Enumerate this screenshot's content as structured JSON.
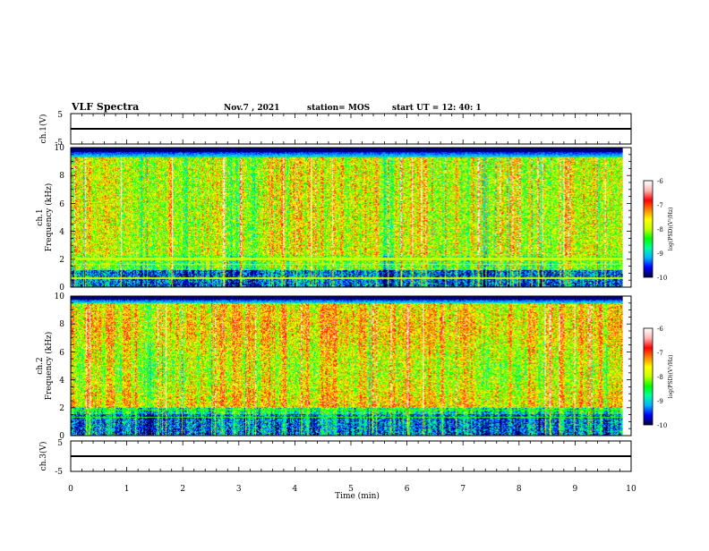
{
  "header": {
    "title": "VLF Spectra",
    "date": "Nov.7 , 2021",
    "station": "station= MOS",
    "start": "start  UT =   12: 40: 1"
  },
  "colors": {
    "background": "#ffffff",
    "axes": "#000000",
    "spectrogram_floor": "#000033",
    "colormap": [
      "#00004a",
      "#0000ff",
      "#00b4ff",
      "#00ffa0",
      "#00ff00",
      "#c8ff00",
      "#ffff00",
      "#ff8000",
      "#ff0000",
      "#ffb4b4",
      "#ffffff"
    ]
  },
  "chart_data": [
    {
      "type": "line",
      "ylabel": "ch.1(V)",
      "ylim": [
        -5,
        5
      ],
      "yticks": [
        "5",
        "-5"
      ],
      "x": [
        0,
        10
      ],
      "values": [
        0,
        0
      ]
    },
    {
      "type": "heatmap",
      "ylabel_top": "ch.1",
      "ylabel": "Frequency (kHz)",
      "ylim": [
        0,
        10
      ],
      "yticks": [
        "0",
        "2",
        "4",
        "6",
        "8",
        "10"
      ],
      "xlim": [
        0,
        10
      ],
      "data_end_min": 9.85,
      "band_max_khz": 9.3,
      "colorbar": {
        "label": "log(PSD)(V²/Hz)",
        "ticks": [
          "-6",
          "-7",
          "-8",
          "-9",
          "-10"
        ],
        "range": [
          -10,
          -6
        ]
      }
    },
    {
      "type": "heatmap",
      "ylabel_top": "ch.2",
      "ylabel": "Frequency (kHz)",
      "ylim": [
        0,
        10
      ],
      "yticks": [
        "0",
        "2",
        "4",
        "6",
        "8",
        "10"
      ],
      "xlim": [
        0,
        10
      ],
      "data_end_min": 9.85,
      "band_max_khz": 9.5,
      "colorbar": {
        "label": "log(PSD)(V²/Hz)",
        "ticks": [
          "-6",
          "-7",
          "-8",
          "-9",
          "-10"
        ],
        "range": [
          -10,
          -6
        ]
      }
    },
    {
      "type": "line",
      "ylabel": "ch.3(V)",
      "ylim": [
        -5,
        5
      ],
      "yticks": [
        "5",
        "-5"
      ],
      "x": [
        0,
        10
      ],
      "values": [
        0,
        0
      ]
    }
  ],
  "xaxis": {
    "label": "Time  (min)",
    "ticks": [
      "0",
      "1",
      "2",
      "3",
      "4",
      "5",
      "6",
      "7",
      "8",
      "9",
      "10"
    ],
    "xlim": [
      0,
      10
    ]
  }
}
